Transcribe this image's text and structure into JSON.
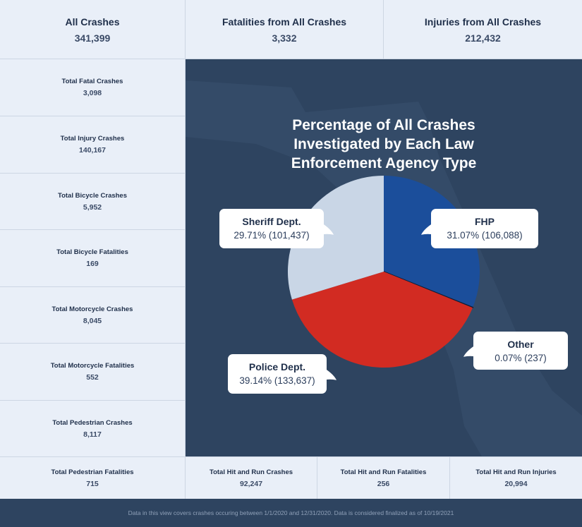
{
  "top_stats": [
    {
      "label": "All Crashes",
      "value": "341,399"
    },
    {
      "label": "Fatalities from All Crashes",
      "value": "3,332"
    },
    {
      "label": "Injuries from All Crashes",
      "value": "212,432"
    }
  ],
  "side_stats": [
    {
      "label": "Total Fatal Crashes",
      "value": "3,098"
    },
    {
      "label": "Total Injury Crashes",
      "value": "140,167"
    },
    {
      "label": "Total Bicycle Crashes",
      "value": "5,952"
    },
    {
      "label": "Total Bicycle Fatalities",
      "value": "169"
    },
    {
      "label": "Total Motorcycle Crashes",
      "value": "8,045"
    },
    {
      "label": "Total Motorcycle Fatalities",
      "value": "552"
    },
    {
      "label": "Total Pedestrian Crashes",
      "value": "8,117"
    }
  ],
  "bottom_stats": [
    {
      "label": "Total Pedestrian Fatalities",
      "value": "715"
    },
    {
      "label": "Total Hit and Run Crashes",
      "value": "92,247"
    },
    {
      "label": "Total Hit and Run Fatalities",
      "value": "256"
    },
    {
      "label": "Total Hit and Run Injuries",
      "value": "20,994"
    }
  ],
  "footer_text": "Data in this view covers crashes occuring between 1/1/2020 and 12/31/2020. Data is considered finalized as of 10/19/2021",
  "chart_data": {
    "type": "pie",
    "title": "Percentage of All Crashes Investigated by Each Law Enforcement Agency Type",
    "title_lines": [
      "Percentage of All Crashes",
      "Investigated by Each Law",
      "Enforcement Agency Type"
    ],
    "slices": [
      {
        "name": "FHP",
        "percent": 31.07,
        "count": 106088,
        "pct_label": "31.07%",
        "count_label": "(106,088)",
        "color": "#1b4e9b"
      },
      {
        "name": "Other",
        "percent": 0.07,
        "count": 237,
        "pct_label": "0.07%",
        "count_label": "(237)",
        "color": "#0e1c33"
      },
      {
        "name": "Police Dept.",
        "percent": 39.14,
        "count": 133637,
        "pct_label": "39.14%",
        "count_label": "(133,637)",
        "color": "#d22b22"
      },
      {
        "name": "Sheriff Dept.",
        "percent": 29.71,
        "count": 101437,
        "pct_label": "29.71%",
        "count_label": "(101,437)",
        "color": "#c9d6e6"
      }
    ]
  },
  "colors": {
    "panel_bg": "#2e4460",
    "page_bg": "#e9eff8",
    "callout_bg": "#ffffff",
    "title_text": "#ffffff"
  }
}
